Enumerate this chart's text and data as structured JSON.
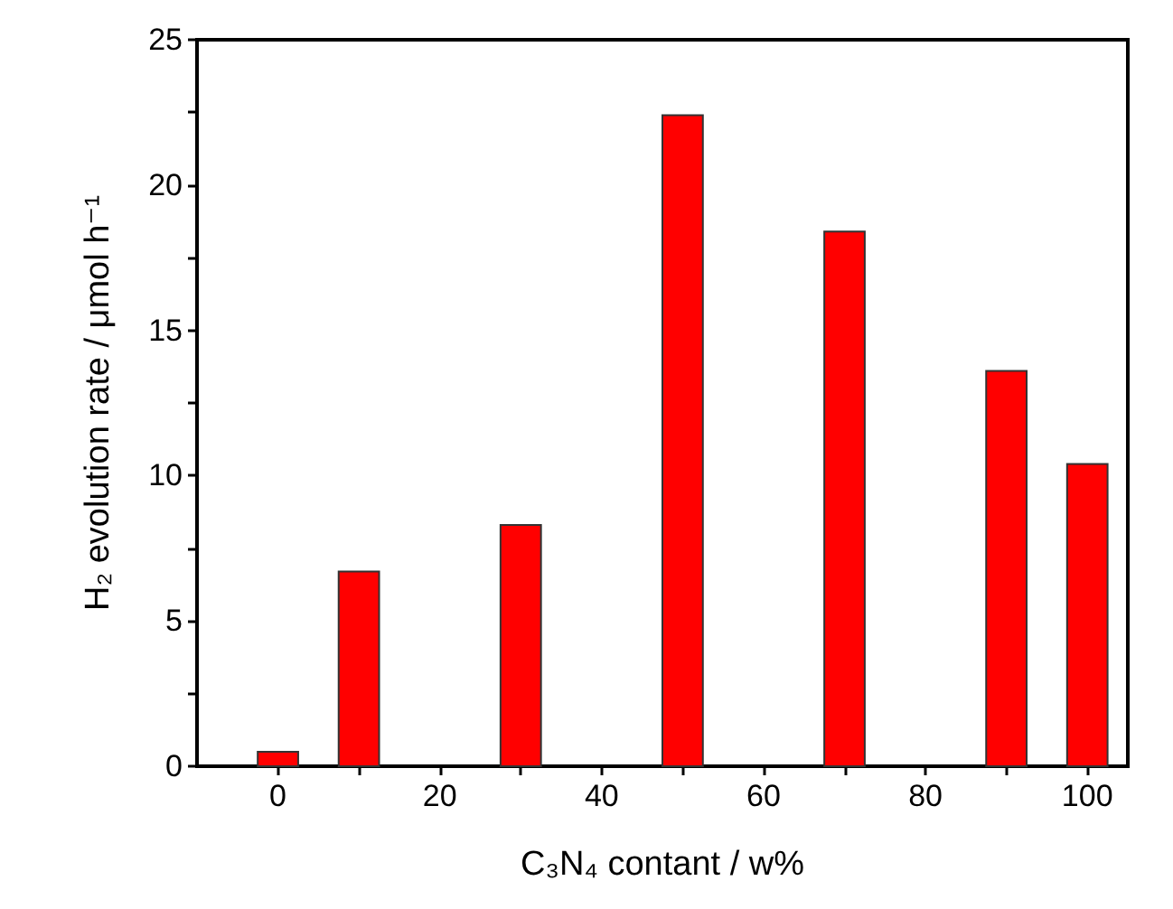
{
  "chart_data": {
    "type": "bar",
    "xlabel": "C₃N₄ contant / w%",
    "ylabel": "H₂ evolution rate / μmol h⁻¹",
    "x": [
      0,
      10,
      30,
      50,
      70,
      90,
      100
    ],
    "values": [
      0.5,
      6.7,
      8.3,
      22.4,
      18.4,
      13.6,
      10.4
    ],
    "color": "#ff0000",
    "xlim": [
      -10,
      105
    ],
    "xticks": [
      0,
      {
        "value": 10,
        "label": null
      },
      20,
      {
        "value": 30,
        "label": null
      },
      40,
      {
        "value": 50,
        "label": null
      },
      60,
      {
        "value": 70,
        "label": null
      },
      80,
      {
        "value": 90,
        "label": null
      },
      100
    ],
    "ylim": [
      0,
      25
    ],
    "yticks": [
      0,
      {
        "value": 2.5,
        "label": null
      },
      5,
      {
        "value": 7.5,
        "label": null
      },
      10,
      {
        "value": 12.5,
        "label": null
      },
      15,
      {
        "value": 17.5,
        "label": null
      },
      20,
      {
        "value": 22.5,
        "label": null
      },
      25
    ],
    "grid": false
  }
}
